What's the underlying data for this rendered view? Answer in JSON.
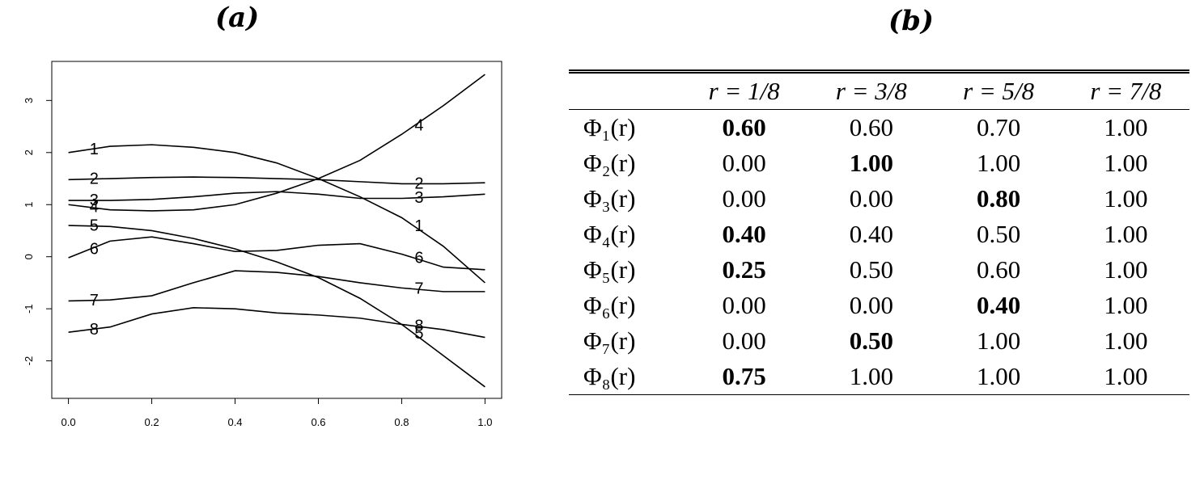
{
  "chart_data": {
    "type": "line",
    "title": "(a)",
    "x": [
      0.0,
      0.1,
      0.2,
      0.3,
      0.4,
      0.5,
      0.6,
      0.7,
      0.8,
      0.9,
      1.0
    ],
    "series": [
      {
        "name": "1",
        "color": "#000000",
        "values": [
          2.0,
          2.12,
          2.15,
          2.1,
          2.0,
          1.8,
          1.5,
          1.15,
          0.75,
          0.2,
          -0.5
        ]
      },
      {
        "name": "2",
        "color": "#000000",
        "values": [
          1.48,
          1.5,
          1.52,
          1.53,
          1.52,
          1.5,
          1.48,
          1.44,
          1.4,
          1.4,
          1.42
        ]
      },
      {
        "name": "3",
        "color": "#000000",
        "values": [
          1.08,
          1.08,
          1.1,
          1.15,
          1.22,
          1.25,
          1.2,
          1.12,
          1.12,
          1.15,
          1.2
        ]
      },
      {
        "name": "4",
        "color": "#000000",
        "values": [
          1.0,
          0.9,
          0.88,
          0.9,
          1.0,
          1.22,
          1.5,
          1.85,
          2.35,
          2.9,
          3.5
        ]
      },
      {
        "name": "5",
        "color": "#000000",
        "values": [
          0.6,
          0.58,
          0.5,
          0.35,
          0.15,
          -0.1,
          -0.4,
          -0.8,
          -1.3,
          -1.9,
          -2.5
        ]
      },
      {
        "name": "6",
        "color": "#000000",
        "values": [
          -0.02,
          0.3,
          0.38,
          0.25,
          0.1,
          0.12,
          0.22,
          0.25,
          0.05,
          -0.2,
          -0.25
        ]
      },
      {
        "name": "7",
        "color": "#000000",
        "values": [
          -0.85,
          -0.83,
          -0.75,
          -0.5,
          -0.27,
          -0.3,
          -0.38,
          -0.5,
          -0.6,
          -0.67,
          -0.67
        ]
      },
      {
        "name": "8",
        "color": "#000000",
        "values": [
          -1.45,
          -1.35,
          -1.1,
          -0.98,
          -1.0,
          -1.08,
          -1.12,
          -1.18,
          -1.3,
          -1.4,
          -1.55
        ]
      }
    ],
    "xlim": [
      -0.04,
      1.04
    ],
    "ylim": [
      -2.72,
      3.75
    ],
    "xticks": [
      {
        "value": 0.0,
        "label": "0.0"
      },
      {
        "value": 0.2,
        "label": "0.2"
      },
      {
        "value": 0.4,
        "label": "0.4"
      },
      {
        "value": 0.6,
        "label": "0.6"
      },
      {
        "value": 0.8,
        "label": "0.8"
      },
      {
        "value": 1.0,
        "label": "1.0"
      }
    ],
    "yticks": [
      -2,
      -1,
      0,
      1,
      2,
      3
    ]
  },
  "table": {
    "title": "(b)",
    "header": [
      "r = 1/8",
      "r = 3/8",
      "r = 5/8",
      "r = 7/8"
    ],
    "rows": [
      {
        "label": "Φ₁(r)",
        "cells": [
          "0.60",
          "0.60",
          "0.70",
          "1.00"
        ],
        "bold": 0
      },
      {
        "label": "Φ₂(r)",
        "cells": [
          "0.00",
          "1.00",
          "1.00",
          "1.00"
        ],
        "bold": 1
      },
      {
        "label": "Φ₃(r)",
        "cells": [
          "0.00",
          "0.00",
          "0.80",
          "1.00"
        ],
        "bold": 2
      },
      {
        "label": "Φ₄(r)",
        "cells": [
          "0.40",
          "0.40",
          "0.50",
          "1.00"
        ],
        "bold": 0
      },
      {
        "label": "Φ₅(r)",
        "cells": [
          "0.25",
          "0.50",
          "0.60",
          "1.00"
        ],
        "bold": 0
      },
      {
        "label": "Φ₆(r)",
        "cells": [
          "0.00",
          "0.00",
          "0.40",
          "1.00"
        ],
        "bold": 2
      },
      {
        "label": "Φ₇(r)",
        "cells": [
          "0.00",
          "0.50",
          "1.00",
          "1.00"
        ],
        "bold": 1
      },
      {
        "label": "Φ₈(r)",
        "cells": [
          "0.75",
          "1.00",
          "1.00",
          "1.00"
        ],
        "bold": 0
      }
    ]
  }
}
